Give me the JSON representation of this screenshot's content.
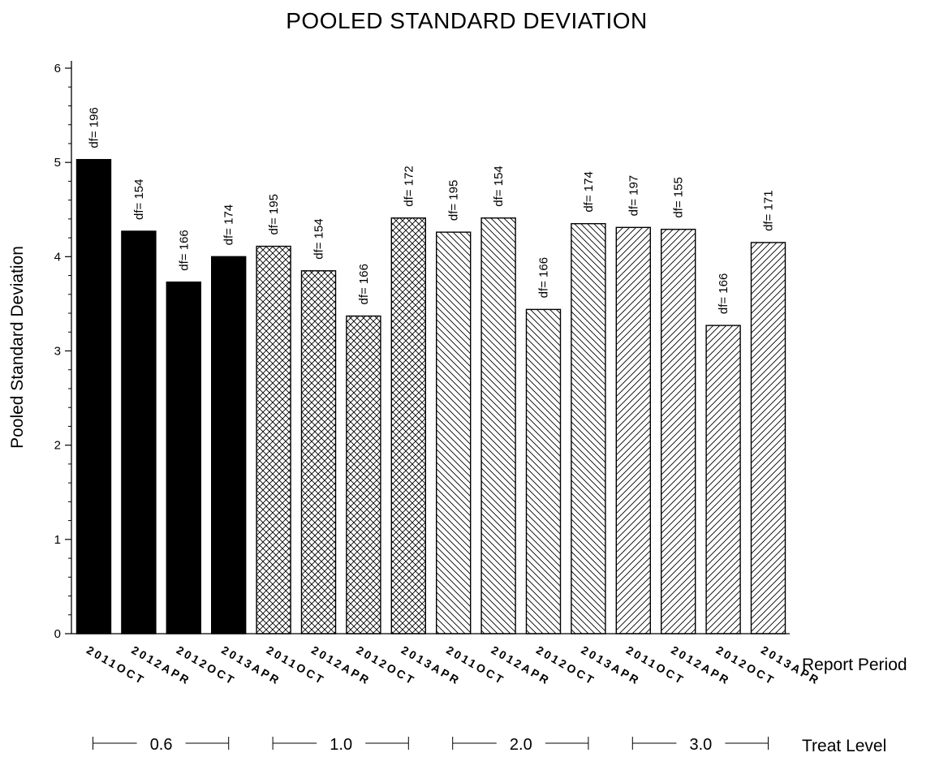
{
  "chart_data": {
    "type": "bar",
    "title": "POOLED STANDARD DEVIATION",
    "ylabel": "Pooled Standard Deviation",
    "ylim": [
      0,
      6
    ],
    "yticks": [
      "0",
      "1",
      "2",
      "3",
      "4",
      "5",
      "6"
    ],
    "categories": [
      "2011OCT",
      "2012APR",
      "2012OCT",
      "2013APR",
      "2011OCT",
      "2012APR",
      "2012OCT",
      "2013APR",
      "2011OCT",
      "2012APR",
      "2012OCT",
      "2013APR",
      "2011OCT",
      "2012APR",
      "2012OCT",
      "2013APR"
    ],
    "values": [
      5.03,
      4.27,
      3.73,
      4.0,
      4.11,
      3.85,
      3.37,
      4.41,
      4.26,
      4.41,
      3.44,
      4.35,
      4.31,
      4.29,
      3.27,
      4.15
    ],
    "data_labels": [
      "df= 196",
      "df= 154",
      "df= 166",
      "df= 174",
      "df= 195",
      "df= 154",
      "df= 166",
      "df= 172",
      "df= 195",
      "df= 154",
      "df= 166",
      "df= 174",
      "df= 197",
      "df= 155",
      "df= 166",
      "df= 171"
    ],
    "x_axis_label": "Report Period",
    "group_axis_label": "Treat Level",
    "groups": [
      {
        "label": "0.6",
        "pattern": "solid"
      },
      {
        "label": "1.0",
        "pattern": "crosshatch"
      },
      {
        "label": "2.0",
        "pattern": "backslash"
      },
      {
        "label": "3.0",
        "pattern": "slash"
      }
    ],
    "grid": false,
    "colors": {
      "bar_fill": "#000000",
      "bar_stroke": "#000000",
      "background": "#ffffff"
    }
  }
}
